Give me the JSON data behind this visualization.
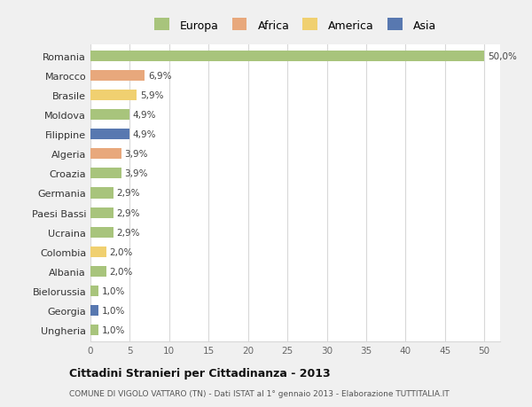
{
  "categories": [
    "Romania",
    "Marocco",
    "Brasile",
    "Moldova",
    "Filippine",
    "Algeria",
    "Croazia",
    "Germania",
    "Paesi Bassi",
    "Ucraina",
    "Colombia",
    "Albania",
    "Bielorussia",
    "Georgia",
    "Ungheria"
  ],
  "values": [
    50.0,
    6.9,
    5.9,
    4.9,
    4.9,
    3.9,
    3.9,
    2.9,
    2.9,
    2.9,
    2.0,
    2.0,
    1.0,
    1.0,
    1.0
  ],
  "labels": [
    "50,0%",
    "6,9%",
    "5,9%",
    "4,9%",
    "4,9%",
    "3,9%",
    "3,9%",
    "2,9%",
    "2,9%",
    "2,9%",
    "2,0%",
    "2,0%",
    "1,0%",
    "1,0%",
    "1,0%"
  ],
  "colors": [
    "#a8c47c",
    "#e8a87c",
    "#f0d070",
    "#a8c47c",
    "#5878b0",
    "#e8a87c",
    "#a8c47c",
    "#a8c47c",
    "#a8c47c",
    "#a8c47c",
    "#f0d070",
    "#a8c47c",
    "#a8c47c",
    "#5878b0",
    "#a8c47c"
  ],
  "legend_labels": [
    "Europa",
    "Africa",
    "America",
    "Asia"
  ],
  "legend_colors": [
    "#a8c47c",
    "#e8a87c",
    "#f0d070",
    "#5878b0"
  ],
  "title": "Cittadini Stranieri per Cittadinanza - 2013",
  "subtitle": "COMUNE DI VIGOLO VATTARO (TN) - Dati ISTAT al 1° gennaio 2013 - Elaborazione TUTTITALIA.IT",
  "xlim": [
    0,
    52
  ],
  "xticks": [
    0,
    5,
    10,
    15,
    20,
    25,
    30,
    35,
    40,
    45,
    50
  ],
  "bg_color": "#f0f0f0",
  "bar_bg_color": "#ffffff",
  "grid_color": "#d8d8d8"
}
